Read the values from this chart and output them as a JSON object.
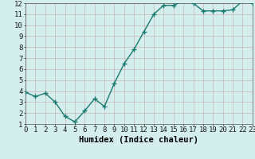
{
  "x": [
    0,
    1,
    2,
    3,
    4,
    5,
    6,
    7,
    8,
    9,
    10,
    11,
    12,
    13,
    14,
    15,
    16,
    17,
    18,
    19,
    20,
    21,
    22,
    23
  ],
  "y": [
    3.9,
    3.5,
    3.8,
    3.0,
    1.7,
    1.2,
    2.2,
    3.3,
    2.6,
    4.7,
    6.5,
    7.8,
    9.4,
    11.0,
    11.8,
    11.8,
    12.2,
    12.0,
    11.3,
    11.3,
    11.3,
    11.4,
    12.2,
    12.0
  ],
  "line_color": "#1a7a6e",
  "marker": "+",
  "marker_size": 4.0,
  "bg_color": "#d4eeee",
  "grid_color_major": "#c8a8a8",
  "grid_color_minor": "#c8a8a8",
  "xlabel": "Humidex (Indice chaleur)",
  "xlim": [
    0,
    23
  ],
  "ylim": [
    1,
    12
  ],
  "ytick_vals": [
    1,
    2,
    3,
    4,
    5,
    6,
    7,
    8,
    9,
    10,
    11,
    12
  ],
  "xlabel_fontsize": 7.5,
  "tick_fontsize": 6.5,
  "linewidth": 1.0
}
